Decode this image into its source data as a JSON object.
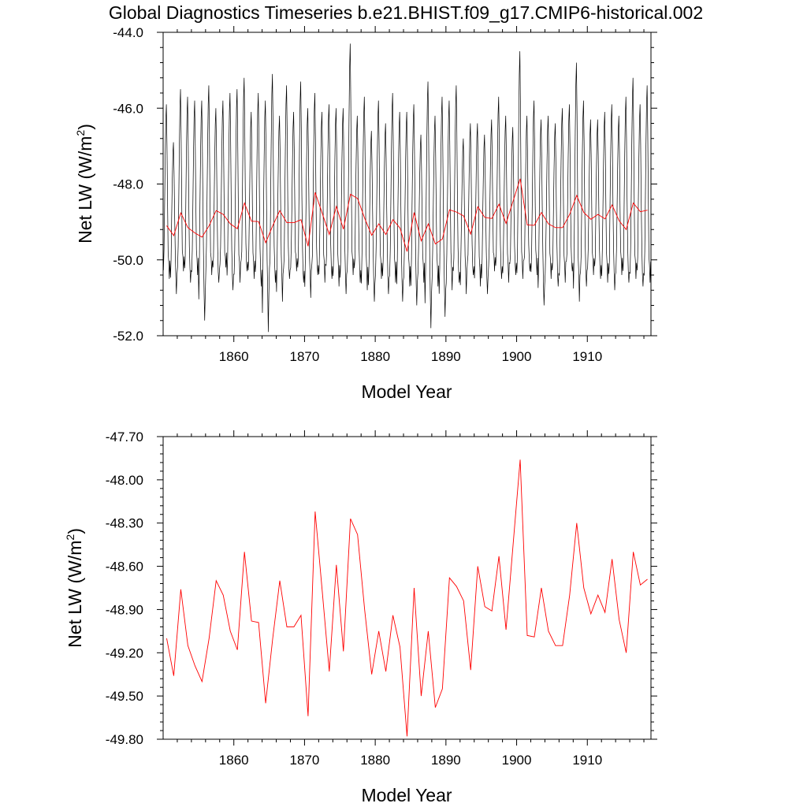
{
  "title": "Global Diagnostics Timeseries b.e21.BHIST.f09_g17.CMIP6-historical.002",
  "colors": {
    "monthly": "#000000",
    "annual": "#ff0000",
    "frame": "#000000"
  },
  "chart_data": [
    {
      "type": "line",
      "ylabel_main": "Net LW (W/m",
      "ylabel_sup": "2",
      "ylabel_close": ")",
      "xlabel": "Model Year",
      "xlim": [
        1850,
        1919
      ],
      "ylim": [
        -52.0,
        -44.0
      ],
      "xticks": [
        1860,
        1870,
        1880,
        1890,
        1900,
        1910
      ],
      "xtick_labels": [
        "1860",
        "1870",
        "1880",
        "1890",
        "1900",
        "1910"
      ],
      "yticks": [
        -44.0,
        -46.0,
        -48.0,
        -50.0,
        -52.0
      ],
      "ytick_labels": [
        "-44.0",
        "-46.0",
        "-48.0",
        "-50.0",
        "-52.0"
      ],
      "series": [
        {
          "name": "monthly",
          "style": "monthly-cycle",
          "peaks": [
            -45.9,
            -46.9,
            -45.5,
            -45.7,
            -45.8,
            -45.8,
            -45.4,
            -46.0,
            -45.8,
            -45.6,
            -45.5,
            -45.2,
            -46.1,
            -45.6,
            -45.8,
            -45.1,
            -46.2,
            -45.4,
            -46.1,
            -45.3,
            -46.0,
            -45.6,
            -46.1,
            -45.9,
            -46.0,
            -46.0,
            -44.3,
            -46.2,
            -45.7,
            -46.6,
            -45.8,
            -46.4,
            -45.6,
            -46.1,
            -46.1,
            -45.9,
            -46.7,
            -45.3,
            -46.2,
            -45.7,
            -45.8,
            -45.4,
            -46.8,
            -46.4,
            -46.4,
            -46.7,
            -46.3,
            -45.7,
            -46.2,
            -46.5,
            -44.5,
            -46.2,
            -45.8,
            -46.3,
            -46.2,
            -46.4,
            -46.0,
            -45.9,
            -44.8,
            -45.8,
            -46.3,
            -46.3,
            -46.1,
            -45.9,
            -46.2,
            -45.7,
            -45.2,
            -45.9,
            -45.4
          ],
          "troughs": [
            -50.5,
            -50.9,
            -50.3,
            -50.6,
            -50.4,
            -51.6,
            -50.4,
            -50.6,
            -50.2,
            -50.8,
            -50.6,
            -50.3,
            -50.5,
            -50.7,
            -51.9,
            -50.6,
            -51.1,
            -50.5,
            -50.3,
            -50.6,
            -51.0,
            -50.4,
            -50.6,
            -50.5,
            -50.7,
            -50.9,
            -50.4,
            -50.6,
            -50.8,
            -51.1,
            -50.5,
            -50.9,
            -50.6,
            -51.1,
            -50.7,
            -51.2,
            -50.6,
            -51.8,
            -50.7,
            -51.5,
            -50.8,
            -50.6,
            -50.9,
            -50.4,
            -50.7,
            -50.9,
            -50.3,
            -50.5,
            -50.6,
            -50.4,
            -50.5,
            -50.3,
            -50.4,
            -51.2,
            -50.5,
            -50.7,
            -50.6,
            -50.3,
            -51.1,
            -50.7,
            -50.4,
            -50.5,
            -50.6,
            -50.8,
            -50.4,
            -50.6,
            -50.5,
            -50.7,
            -50.6
          ]
        },
        {
          "name": "annual",
          "style": "line",
          "x": [
            1850.5,
            1851.5,
            1852.5,
            1853.5,
            1854.5,
            1855.5,
            1856.5,
            1857.5,
            1858.5,
            1859.5,
            1860.5,
            1861.5,
            1862.5,
            1863.5,
            1864.5,
            1865.5,
            1866.5,
            1867.5,
            1868.5,
            1869.5,
            1870.5,
            1871.5,
            1872.5,
            1873.5,
            1874.5,
            1875.5,
            1876.5,
            1877.5,
            1878.5,
            1879.5,
            1880.5,
            1881.5,
            1882.5,
            1883.5,
            1884.5,
            1885.5,
            1886.5,
            1887.5,
            1888.5,
            1889.5,
            1890.5,
            1891.5,
            1892.5,
            1893.5,
            1894.5,
            1895.5,
            1896.5,
            1897.5,
            1898.5,
            1899.5,
            1900.5,
            1901.5,
            1902.5,
            1903.5,
            1904.5,
            1905.5,
            1906.5,
            1907.5,
            1908.5,
            1909.5,
            1910.5,
            1911.5,
            1912.5,
            1913.5,
            1914.5,
            1915.5,
            1916.5,
            1917.5,
            1918.5
          ],
          "values": [
            -49.1,
            -49.36,
            -48.76,
            -49.15,
            -49.29,
            -49.4,
            -49.1,
            -48.7,
            -48.8,
            -49.05,
            -49.18,
            -48.5,
            -48.98,
            -48.99,
            -49.55,
            -49.1,
            -48.7,
            -49.02,
            -49.02,
            -48.94,
            -49.64,
            -48.22,
            -48.77,
            -49.33,
            -48.59,
            -49.19,
            -48.27,
            -48.38,
            -48.9,
            -49.35,
            -49.05,
            -49.33,
            -48.94,
            -49.16,
            -49.78,
            -48.75,
            -49.5,
            -49.05,
            -49.58,
            -49.45,
            -48.68,
            -48.74,
            -48.84,
            -49.32,
            -48.6,
            -48.88,
            -48.91,
            -48.53,
            -49.04,
            -48.45,
            -47.86,
            -49.08,
            -49.09,
            -48.75,
            -49.05,
            -49.15,
            -49.15,
            -48.8,
            -48.3,
            -48.75,
            -48.93,
            -48.8,
            -48.92,
            -48.55,
            -48.97,
            -49.2,
            -48.5,
            -48.73,
            -48.69
          ]
        }
      ]
    },
    {
      "type": "line",
      "ylabel_main": "Net LW (W/m",
      "ylabel_sup": "2",
      "ylabel_close": ")",
      "xlabel": "Model Year",
      "xlim": [
        1850,
        1919
      ],
      "ylim": [
        -49.8,
        -47.7
      ],
      "xticks": [
        1860,
        1870,
        1880,
        1890,
        1900,
        1910
      ],
      "xtick_labels": [
        "1860",
        "1870",
        "1880",
        "1890",
        "1900",
        "1910"
      ],
      "yticks": [
        -47.7,
        -48.0,
        -48.3,
        -48.6,
        -48.9,
        -49.2,
        -49.5,
        -49.8
      ],
      "ytick_labels": [
        "-47.70",
        "-48.00",
        "-48.30",
        "-48.60",
        "-48.90",
        "-49.20",
        "-49.50",
        "-49.80"
      ],
      "series": [
        {
          "name": "annual",
          "style": "line",
          "x": [
            1850.5,
            1851.5,
            1852.5,
            1853.5,
            1854.5,
            1855.5,
            1856.5,
            1857.5,
            1858.5,
            1859.5,
            1860.5,
            1861.5,
            1862.5,
            1863.5,
            1864.5,
            1865.5,
            1866.5,
            1867.5,
            1868.5,
            1869.5,
            1870.5,
            1871.5,
            1872.5,
            1873.5,
            1874.5,
            1875.5,
            1876.5,
            1877.5,
            1878.5,
            1879.5,
            1880.5,
            1881.5,
            1882.5,
            1883.5,
            1884.5,
            1885.5,
            1886.5,
            1887.5,
            1888.5,
            1889.5,
            1890.5,
            1891.5,
            1892.5,
            1893.5,
            1894.5,
            1895.5,
            1896.5,
            1897.5,
            1898.5,
            1899.5,
            1900.5,
            1901.5,
            1902.5,
            1903.5,
            1904.5,
            1905.5,
            1906.5,
            1907.5,
            1908.5,
            1909.5,
            1910.5,
            1911.5,
            1912.5,
            1913.5,
            1914.5,
            1915.5,
            1916.5,
            1917.5,
            1918.5
          ],
          "values": [
            -49.1,
            -49.36,
            -48.76,
            -49.15,
            -49.29,
            -49.4,
            -49.1,
            -48.7,
            -48.8,
            -49.05,
            -49.18,
            -48.5,
            -48.98,
            -48.99,
            -49.55,
            -49.1,
            -48.7,
            -49.02,
            -49.02,
            -48.94,
            -49.64,
            -48.22,
            -48.77,
            -49.33,
            -48.59,
            -49.19,
            -48.27,
            -48.38,
            -48.9,
            -49.35,
            -49.05,
            -49.33,
            -48.94,
            -49.16,
            -49.78,
            -48.75,
            -49.5,
            -49.05,
            -49.58,
            -49.45,
            -48.68,
            -48.74,
            -48.84,
            -49.32,
            -48.6,
            -48.88,
            -48.91,
            -48.53,
            -49.04,
            -48.45,
            -47.86,
            -49.08,
            -49.09,
            -48.75,
            -49.05,
            -49.15,
            -49.15,
            -48.8,
            -48.3,
            -48.75,
            -48.93,
            -48.8,
            -48.92,
            -48.55,
            -48.97,
            -49.2,
            -48.5,
            -48.73,
            -48.69
          ]
        }
      ]
    }
  ]
}
